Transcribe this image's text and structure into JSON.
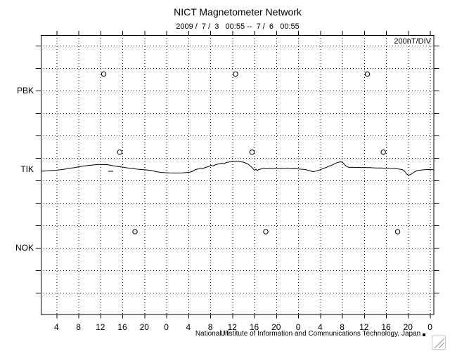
{
  "header": {
    "title": "NICT Magnetometer Network",
    "subtitle": "2009 /  7 /  3   00:55 --  7 /  6   00:55"
  },
  "plot": {
    "scale_label": "200nT/DIV",
    "x_axis_label": "UT",
    "credit": "National Institute of Information and Communications Technology, Japan",
    "fine_print": ",,' ,.."
  },
  "chart_data": {
    "type": "line",
    "title": "NICT Magnetometer Network",
    "time_range": "2009/7/3 00:55 UT -- 2009/7/6 00:55 UT (72 hours)",
    "x_unit": "hour of day, UT",
    "x_tick_hours": [
      4,
      8,
      12,
      16,
      20,
      24,
      28,
      32,
      36,
      40,
      44,
      48,
      52,
      56,
      60,
      64,
      68,
      72
    ],
    "x_tick_labels": [
      "4",
      "8",
      "12",
      "16",
      "20",
      "0",
      "4",
      "8",
      "12",
      "16",
      "20",
      "0",
      "4",
      "8",
      "12",
      "16",
      "20",
      "0"
    ],
    "scale_per_division_nT": 200,
    "station_separation_divisions": 3.5,
    "grid": "dotted; vertical line every 4 h, horizontal line every 200 nT division; outward ticks on all four sides",
    "y_stations": [
      "PBK",
      "TIK",
      "NOK"
    ],
    "series": [
      {
        "name": "PBK",
        "has_trace": false,
        "daily_markers_hours": [
          12.6,
          36.6,
          60.6
        ],
        "marker_offset_nT": 147
      },
      {
        "name": "TIK",
        "has_trace": true,
        "daily_markers_hours": [
          15.5,
          39.6,
          63.5
        ],
        "marker_offset_nT": 152,
        "trace_points_h_nT": [
          [
            1.14,
            -18.8
          ],
          [
            2.04,
            -15.6
          ],
          [
            2.94,
            -12.5
          ],
          [
            3.96,
            -9.4
          ],
          [
            4.98,
            -3.1
          ],
          [
            5.88,
            3.1
          ],
          [
            6.52,
            9.4
          ],
          [
            7.16,
            12.5
          ],
          [
            7.8,
            18.8
          ],
          [
            8.44,
            25
          ],
          [
            9.08,
            28.1
          ],
          [
            9.72,
            32.5
          ],
          [
            10.36,
            36.3
          ],
          [
            11,
            38.8
          ],
          [
            11.64,
            41.9
          ],
          [
            12.28,
            40
          ],
          [
            12.92,
            42.5
          ],
          [
            13.56,
            37.5
          ],
          [
            14.2,
            31.3
          ],
          [
            14.84,
            26.3
          ],
          [
            15.48,
            21.9
          ],
          [
            16.12,
            17.5
          ],
          [
            16.76,
            12.5
          ],
          [
            17.4,
            7.5
          ],
          [
            18.04,
            4.4
          ],
          [
            18.68,
            0
          ],
          [
            19.32,
            -2.5
          ],
          [
            19.96,
            -5
          ],
          [
            20.6,
            -8.1
          ],
          [
            21.24,
            -11.3
          ],
          [
            21.88,
            -18.8
          ],
          [
            22.52,
            -25
          ],
          [
            23.16,
            -28.8
          ],
          [
            23.8,
            -31.3
          ],
          [
            24.44,
            -33.1
          ],
          [
            25.08,
            -33.8
          ],
          [
            25.72,
            -34.4
          ],
          [
            26.36,
            -33.8
          ],
          [
            27,
            -32.5
          ],
          [
            27.64,
            -30
          ],
          [
            28.28,
            -26.3
          ],
          [
            28.92,
            -15.6
          ],
          [
            29.3,
            -3.1
          ],
          [
            29.82,
            1.3
          ],
          [
            30.2,
            9.4
          ],
          [
            30.58,
            3.1
          ],
          [
            31.1,
            15.6
          ],
          [
            31.61,
            21.9
          ],
          [
            32.12,
            34.4
          ],
          [
            32.5,
            28.1
          ],
          [
            33.02,
            40.6
          ],
          [
            33.53,
            46.9
          ],
          [
            34.04,
            53.1
          ],
          [
            34.42,
            48.8
          ],
          [
            34.94,
            59.4
          ],
          [
            35.45,
            63.8
          ],
          [
            35.96,
            67.5
          ],
          [
            36.47,
            71.3
          ],
          [
            36.98,
            70
          ],
          [
            37.5,
            67.5
          ],
          [
            38.01,
            62.5
          ],
          [
            38.52,
            53.1
          ],
          [
            38.9,
            43.8
          ],
          [
            39.29,
            28.1
          ],
          [
            39.54,
            18.8
          ],
          [
            39.8,
            3.1
          ],
          [
            40.06,
            -9.4
          ],
          [
            40.31,
            0
          ],
          [
            40.57,
            -12.5
          ],
          [
            40.82,
            -3.1
          ],
          [
            41.08,
            0
          ],
          [
            41.46,
            4.4
          ],
          [
            41.85,
            6.3
          ],
          [
            42.36,
            3.1
          ],
          [
            42.87,
            7.5
          ],
          [
            43.38,
            6.3
          ],
          [
            43.9,
            8.8
          ],
          [
            44.41,
            5
          ],
          [
            44.92,
            7.5
          ],
          [
            45.43,
            6.3
          ],
          [
            45.94,
            8.1
          ],
          [
            46.46,
            5.6
          ],
          [
            46.97,
            3.8
          ],
          [
            47.48,
            5
          ],
          [
            47.99,
            2.5
          ],
          [
            48.5,
            0
          ],
          [
            49.02,
            -1.9
          ],
          [
            49.53,
            -6.3
          ],
          [
            50.04,
            -12.5
          ],
          [
            50.42,
            -18.8
          ],
          [
            50.81,
            -22.5
          ],
          [
            51.19,
            -17.5
          ],
          [
            51.58,
            -11.3
          ],
          [
            51.96,
            -6.3
          ],
          [
            52.34,
            1.3
          ],
          [
            52.73,
            9.4
          ],
          [
            53.11,
            15.6
          ],
          [
            53.5,
            25
          ],
          [
            53.88,
            31.3
          ],
          [
            54.26,
            38.8
          ],
          [
            54.65,
            48.8
          ],
          [
            55.03,
            57.5
          ],
          [
            55.42,
            62.5
          ],
          [
            55.8,
            65
          ],
          [
            56.06,
            61.3
          ],
          [
            56.31,
            50
          ],
          [
            56.57,
            34.4
          ],
          [
            56.82,
            25
          ],
          [
            57.08,
            18.8
          ],
          [
            57.46,
            16.3
          ],
          [
            57.98,
            17.5
          ],
          [
            58.49,
            15
          ],
          [
            59,
            16.9
          ],
          [
            59.51,
            13.8
          ],
          [
            60.02,
            15.6
          ],
          [
            60.54,
            13.1
          ],
          [
            61.05,
            15
          ],
          [
            61.56,
            12.5
          ],
          [
            62.07,
            11.3
          ],
          [
            62.58,
            10
          ],
          [
            63.1,
            11.3
          ],
          [
            63.61,
            8.8
          ],
          [
            64.12,
            10
          ],
          [
            64.63,
            8.1
          ],
          [
            65.14,
            6.9
          ],
          [
            65.66,
            5
          ],
          [
            66.17,
            2.5
          ],
          [
            66.68,
            -1.3
          ],
          [
            67.06,
            -6.3
          ],
          [
            67.32,
            -15.6
          ],
          [
            67.57,
            -31.3
          ],
          [
            67.83,
            -46.9
          ],
          [
            68.09,
            -53.1
          ],
          [
            68.34,
            -50
          ],
          [
            68.6,
            -43.8
          ],
          [
            68.85,
            -34.4
          ],
          [
            69.11,
            -25
          ],
          [
            69.37,
            -18.8
          ],
          [
            69.62,
            -13.8
          ],
          [
            69.88,
            -10
          ],
          [
            70.39,
            -7.5
          ],
          [
            70.9,
            -5
          ],
          [
            71.42,
            -3.8
          ],
          [
            71.93,
            -2.5
          ],
          [
            72.31,
            -3.8
          ],
          [
            72.7,
            -5.6
          ]
        ]
      },
      {
        "name": "NOK",
        "has_trace": false,
        "daily_markers_hours": [
          18.3,
          42.1,
          66.1
        ],
        "marker_offset_nT": 144
      }
    ],
    "artifact_dash_h_nT": [
      [
        13.43,
        -18.8
      ],
      [
        14.33,
        -18.8
      ]
    ]
  }
}
